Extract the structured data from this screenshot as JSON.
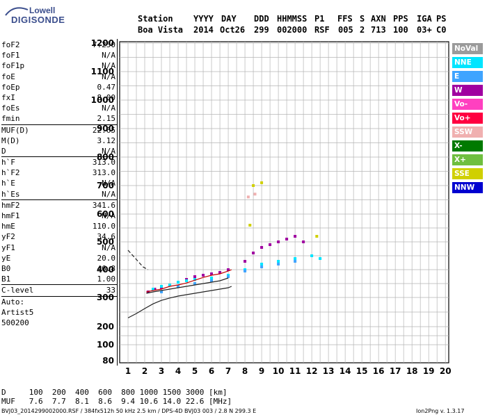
{
  "logo": {
    "line1": "Lowell",
    "line2": "DIGISONDE"
  },
  "header": {
    "labels": [
      "Station",
      "YYYY",
      "DAY",
      "DDD",
      "HHMMSS",
      "P1",
      "FFS",
      "S",
      "AXN",
      "PPS",
      "IGA",
      "PS"
    ],
    "values": [
      "Boa Vista",
      "2014",
      "Oct26",
      "299",
      "002000",
      "RSF",
      "005",
      "2",
      "713",
      "100",
      "03+",
      "C0"
    ]
  },
  "params": [
    {
      "k": "foF2",
      "v": "7.250"
    },
    {
      "k": "foF1",
      "v": "N/A"
    },
    {
      "k": "foF1p",
      "v": "N/A"
    },
    {
      "k": "foE",
      "v": "N/A"
    },
    {
      "k": "foEp",
      "v": "0.47"
    },
    {
      "k": "fxI",
      "v": "8.00"
    },
    {
      "k": "foEs",
      "v": "N/A"
    },
    {
      "k": "fmin",
      "v": "2.15"
    },
    {
      "k": "MUF(D)",
      "v": "22.65",
      "sep": true
    },
    {
      "k": "M(D)",
      "v": "3.12"
    },
    {
      "k": "D",
      "v": "N/A"
    },
    {
      "k": "h`F",
      "v": "313.0",
      "sep": true
    },
    {
      "k": "h`F2",
      "v": "313.0"
    },
    {
      "k": "h`E",
      "v": "N/A"
    },
    {
      "k": "h`Es",
      "v": "N/A"
    },
    {
      "k": "hmF2",
      "v": "341.6",
      "sep": true
    },
    {
      "k": "hmF1",
      "v": "N/A"
    },
    {
      "k": "hmE",
      "v": "110.0"
    },
    {
      "k": "yF2",
      "v": "34.6"
    },
    {
      "k": "yF1",
      "v": "N/A"
    },
    {
      "k": "yE",
      "v": "20.0"
    },
    {
      "k": "B0",
      "v": "46.8"
    },
    {
      "k": "B1",
      "v": "1.00"
    },
    {
      "k": "C-level",
      "v": "33",
      "sep": true
    },
    {
      "k": "Auto:",
      "v": "",
      "sep": true
    },
    {
      "k": "Artist5",
      "v": ""
    },
    {
      "k": "500200",
      "v": ""
    }
  ],
  "legend": [
    {
      "label": "NoVal",
      "color": "#9b9b9b"
    },
    {
      "label": "NNE",
      "color": "#00e5ff"
    },
    {
      "label": "E",
      "color": "#3fa4ff"
    },
    {
      "label": "W",
      "color": "#a000a0"
    },
    {
      "label": "Vo-",
      "color": "#ff40c0"
    },
    {
      "label": "Vo+",
      "color": "#ff0040"
    },
    {
      "label": "SSW",
      "color": "#f0b0b0"
    },
    {
      "label": "X-",
      "color": "#007a00"
    },
    {
      "label": "X+",
      "color": "#6fbf3f"
    },
    {
      "label": "SSE",
      "color": "#d0d000"
    },
    {
      "label": "NNW",
      "color": "#0000d0"
    }
  ],
  "bottom": {
    "d_row": "D     100  200  400  600  800 1000 1500 3000 [km]",
    "muf_row": "MUF   7.6  7.7  8.1  8.6  9.4 10.6 14.0 22.6 [MHz]"
  },
  "footer": {
    "left": "BVJ03_2014299002000.RSF / 384fx512h 50 kHz 2.5 km / DPS-4D BVJ03 003 / 2.8 N 299.3 E",
    "right": "Ion2Png v. 1.3.17"
  },
  "chart_data": {
    "type": "scatter",
    "title": "",
    "xlabel": "",
    "ylabel": "",
    "xlim": [
      0.5,
      20.2
    ],
    "ylim": [
      80,
      1200
    ],
    "x_ticks": [
      "1",
      "2",
      "3",
      "4",
      "5",
      "6",
      "7",
      "8",
      "9",
      "10",
      "11",
      "12",
      "13",
      "14",
      "15",
      "16",
      "17",
      "18",
      "19",
      "20"
    ],
    "y_ticks": [
      "80",
      "100",
      "200",
      "300",
      "400",
      "500",
      "600",
      "700",
      "800",
      "900",
      "1000",
      "1100",
      "1200"
    ],
    "grid": true,
    "y_scale": "log-like (ionogram height)",
    "series": [
      {
        "name": "W",
        "points": [
          [
            2.2,
            320
          ],
          [
            2.6,
            330
          ],
          [
            3.0,
            335
          ],
          [
            3.5,
            345
          ],
          [
            4.0,
            355
          ],
          [
            4.5,
            365
          ],
          [
            5.0,
            375
          ],
          [
            5.5,
            380
          ],
          [
            6.0,
            385
          ],
          [
            6.5,
            390
          ],
          [
            7.0,
            400
          ],
          [
            8.0,
            430
          ],
          [
            8.5,
            460
          ],
          [
            9.0,
            480
          ],
          [
            9.5,
            490
          ],
          [
            10.0,
            500
          ],
          [
            10.5,
            510
          ],
          [
            11.0,
            520
          ],
          [
            11.5,
            500
          ]
        ]
      },
      {
        "name": "NNE",
        "points": [
          [
            2.5,
            330
          ],
          [
            3.0,
            340
          ],
          [
            3.5,
            345
          ],
          [
            4.0,
            355
          ],
          [
            4.5,
            360
          ],
          [
            5.0,
            365
          ],
          [
            6.0,
            370
          ],
          [
            7.0,
            380
          ],
          [
            8.0,
            400
          ],
          [
            9.0,
            420
          ],
          [
            10.0,
            430
          ],
          [
            11.0,
            440
          ],
          [
            12.0,
            450
          ],
          [
            12.5,
            440
          ]
        ]
      },
      {
        "name": "E",
        "points": [
          [
            3.0,
            320
          ],
          [
            4.0,
            340
          ],
          [
            5.0,
            350
          ],
          [
            6.0,
            360
          ],
          [
            7.0,
            375
          ],
          [
            8.0,
            395
          ],
          [
            9.0,
            410
          ],
          [
            10.0,
            420
          ],
          [
            11.0,
            430
          ]
        ]
      },
      {
        "name": "SSE",
        "points": [
          [
            8.5,
            700
          ],
          [
            9.0,
            710
          ],
          [
            8.3,
            560
          ],
          [
            12.3,
            520
          ]
        ]
      },
      {
        "name": "SSW",
        "points": [
          [
            8.2,
            660
          ],
          [
            8.6,
            670
          ]
        ]
      }
    ],
    "curves": [
      {
        "name": "profile",
        "points": [
          [
            2.1,
            315
          ],
          [
            2.5,
            320
          ],
          [
            3.0,
            325
          ],
          [
            3.5,
            330
          ],
          [
            4.0,
            335
          ],
          [
            4.5,
            340
          ],
          [
            5.0,
            345
          ],
          [
            5.5,
            350
          ],
          [
            6.0,
            355
          ],
          [
            6.5,
            360
          ],
          [
            7.0,
            370
          ]
        ]
      },
      {
        "name": "trace",
        "points": [
          [
            2.1,
            320
          ],
          [
            2.5,
            325
          ],
          [
            3.0,
            330
          ],
          [
            3.5,
            340
          ],
          [
            4.0,
            345
          ],
          [
            4.5,
            352
          ],
          [
            5.0,
            362
          ],
          [
            5.5,
            372
          ],
          [
            6.0,
            380
          ],
          [
            6.5,
            385
          ],
          [
            7.0,
            395
          ],
          [
            7.2,
            400
          ]
        ]
      },
      {
        "name": "lower",
        "points": [
          [
            1.0,
            230
          ],
          [
            1.5,
            245
          ],
          [
            2.0,
            262
          ],
          [
            2.5,
            278
          ],
          [
            3.0,
            290
          ],
          [
            3.5,
            298
          ],
          [
            4.0,
            305
          ],
          [
            5.0,
            315
          ],
          [
            6.0,
            325
          ],
          [
            7.0,
            335
          ],
          [
            7.2,
            340
          ]
        ]
      },
      {
        "name": "upper-dashed",
        "points": [
          [
            1.0,
            470
          ],
          [
            1.3,
            450
          ],
          [
            1.6,
            430
          ],
          [
            1.9,
            410
          ],
          [
            2.2,
            400
          ]
        ]
      }
    ]
  }
}
